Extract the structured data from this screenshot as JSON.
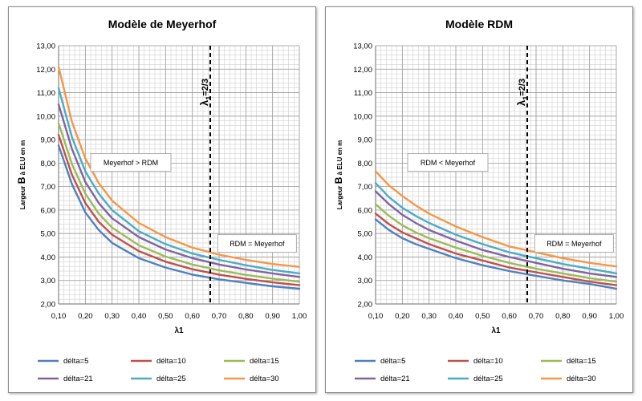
{
  "charts": [
    {
      "title": "Modèle de Meyerhof",
      "ylabel": {
        "prefix": "Largeur ",
        "big": "B",
        "suffix": " à ELU en m"
      },
      "xlabel": "λ1",
      "vline": {
        "label": "λ",
        "label_sub": "1",
        "label_suffix": "=2/3"
      },
      "annotations": [
        {
          "text": "Meyerhof > RDM"
        },
        {
          "text": "RDM = Meyerhof"
        }
      ]
    },
    {
      "title": "Modèle RDM",
      "ylabel": {
        "prefix": "Largeur ",
        "big": "B",
        "suffix": " à ELU en m"
      },
      "xlabel": "λ1",
      "vline": {
        "label": "λ",
        "label_sub": "1",
        "label_suffix": "=2/3"
      },
      "annotations": [
        {
          "text": "RDM < Meyerhof"
        },
        {
          "text": "RDM = Meyerhof"
        }
      ]
    }
  ],
  "chart_data": [
    {
      "type": "line",
      "title": "Modèle de Meyerhof",
      "xlabel": "λ1",
      "ylabel": "Largeur B à ELU en m",
      "xlim": [
        0.1,
        1.0
      ],
      "ylim": [
        2.0,
        13.0
      ],
      "xticks": [
        "0,10",
        "0,20",
        "0,30",
        "0,40",
        "0,50",
        "0,60",
        "0,70",
        "0,80",
        "0,90",
        "1,00"
      ],
      "yticks": [
        "2,00",
        "3,00",
        "4,00",
        "5,00",
        "6,00",
        "7,00",
        "8,00",
        "9,00",
        "10,00",
        "11,00",
        "12,00",
        "13,00"
      ],
      "grid": true,
      "legend_position": "bottom",
      "vertical_line_x": 0.667,
      "x": [
        0.1,
        0.15,
        0.2,
        0.25,
        0.3,
        0.4,
        0.5,
        0.6,
        0.7,
        0.8,
        0.9,
        1.0
      ],
      "series": [
        {
          "name": "délta=5",
          "color": "#4f81bd",
          "values": [
            8.75,
            7.1,
            5.9,
            5.15,
            4.6,
            3.95,
            3.55,
            3.25,
            3.05,
            2.9,
            2.75,
            2.65
          ]
        },
        {
          "name": "délta=10",
          "color": "#c0504d",
          "values": [
            9.2,
            7.5,
            6.3,
            5.5,
            4.95,
            4.25,
            3.8,
            3.48,
            3.25,
            3.07,
            2.92,
            2.8
          ]
        },
        {
          "name": "délta=15",
          "color": "#9bbb59",
          "values": [
            9.7,
            7.95,
            6.7,
            5.85,
            5.25,
            4.5,
            4.02,
            3.68,
            3.43,
            3.24,
            3.08,
            2.95
          ]
        },
        {
          "name": "délta=21",
          "color": "#8064a2",
          "values": [
            10.5,
            8.6,
            7.2,
            6.3,
            5.65,
            4.85,
            4.32,
            3.95,
            3.68,
            3.47,
            3.3,
            3.15
          ]
        },
        {
          "name": "délta=25",
          "color": "#4bacc6",
          "values": [
            11.2,
            9.1,
            7.65,
            6.7,
            6.0,
            5.1,
            4.55,
            4.15,
            3.88,
            3.65,
            3.45,
            3.3
          ]
        },
        {
          "name": "délta=30",
          "color": "#f79646",
          "values": [
            12.1,
            9.75,
            8.2,
            7.15,
            6.4,
            5.45,
            4.85,
            4.4,
            4.1,
            3.88,
            3.7,
            3.58
          ]
        }
      ]
    },
    {
      "type": "line",
      "title": "Modèle RDM",
      "xlabel": "λ1",
      "ylabel": "Largeur B à ELU en m",
      "xlim": [
        0.1,
        1.0
      ],
      "ylim": [
        2.0,
        13.0
      ],
      "xticks": [
        "0,10",
        "0,20",
        "0,30",
        "0,40",
        "0,50",
        "0,60",
        "0,70",
        "0,80",
        "0,90",
        "1,00"
      ],
      "yticks": [
        "2,00",
        "3,00",
        "4,00",
        "5,00",
        "6,00",
        "7,00",
        "8,00",
        "9,00",
        "10,00",
        "11,00",
        "12,00",
        "13,00"
      ],
      "grid": true,
      "legend_position": "bottom",
      "vertical_line_x": 0.667,
      "x": [
        0.1,
        0.15,
        0.2,
        0.25,
        0.3,
        0.4,
        0.5,
        0.6,
        0.7,
        0.8,
        0.9,
        1.0
      ],
      "series": [
        {
          "name": "délta=5",
          "color": "#4f81bd",
          "values": [
            5.6,
            5.15,
            4.8,
            4.55,
            4.35,
            3.95,
            3.65,
            3.4,
            3.2,
            3.0,
            2.85,
            2.65
          ]
        },
        {
          "name": "délta=10",
          "color": "#c0504d",
          "values": [
            5.85,
            5.4,
            5.05,
            4.8,
            4.55,
            4.15,
            3.85,
            3.55,
            3.35,
            3.15,
            2.95,
            2.8
          ]
        },
        {
          "name": "délta=15",
          "color": "#9bbb59",
          "values": [
            6.25,
            5.75,
            5.35,
            5.05,
            4.8,
            4.4,
            4.05,
            3.75,
            3.5,
            3.3,
            3.1,
            2.95
          ]
        },
        {
          "name": "délta=21",
          "color": "#8064a2",
          "values": [
            6.8,
            6.25,
            5.8,
            5.45,
            5.15,
            4.7,
            4.3,
            4.0,
            3.75,
            3.5,
            3.3,
            3.15
          ]
        },
        {
          "name": "délta=25",
          "color": "#4bacc6",
          "values": [
            7.15,
            6.55,
            6.1,
            5.75,
            5.45,
            4.95,
            4.55,
            4.2,
            3.95,
            3.7,
            3.5,
            3.3
          ]
        },
        {
          "name": "délta=30",
          "color": "#f79646",
          "values": [
            7.65,
            7.05,
            6.6,
            6.2,
            5.85,
            5.3,
            4.85,
            4.45,
            4.2,
            3.95,
            3.75,
            3.6
          ]
        }
      ]
    }
  ]
}
